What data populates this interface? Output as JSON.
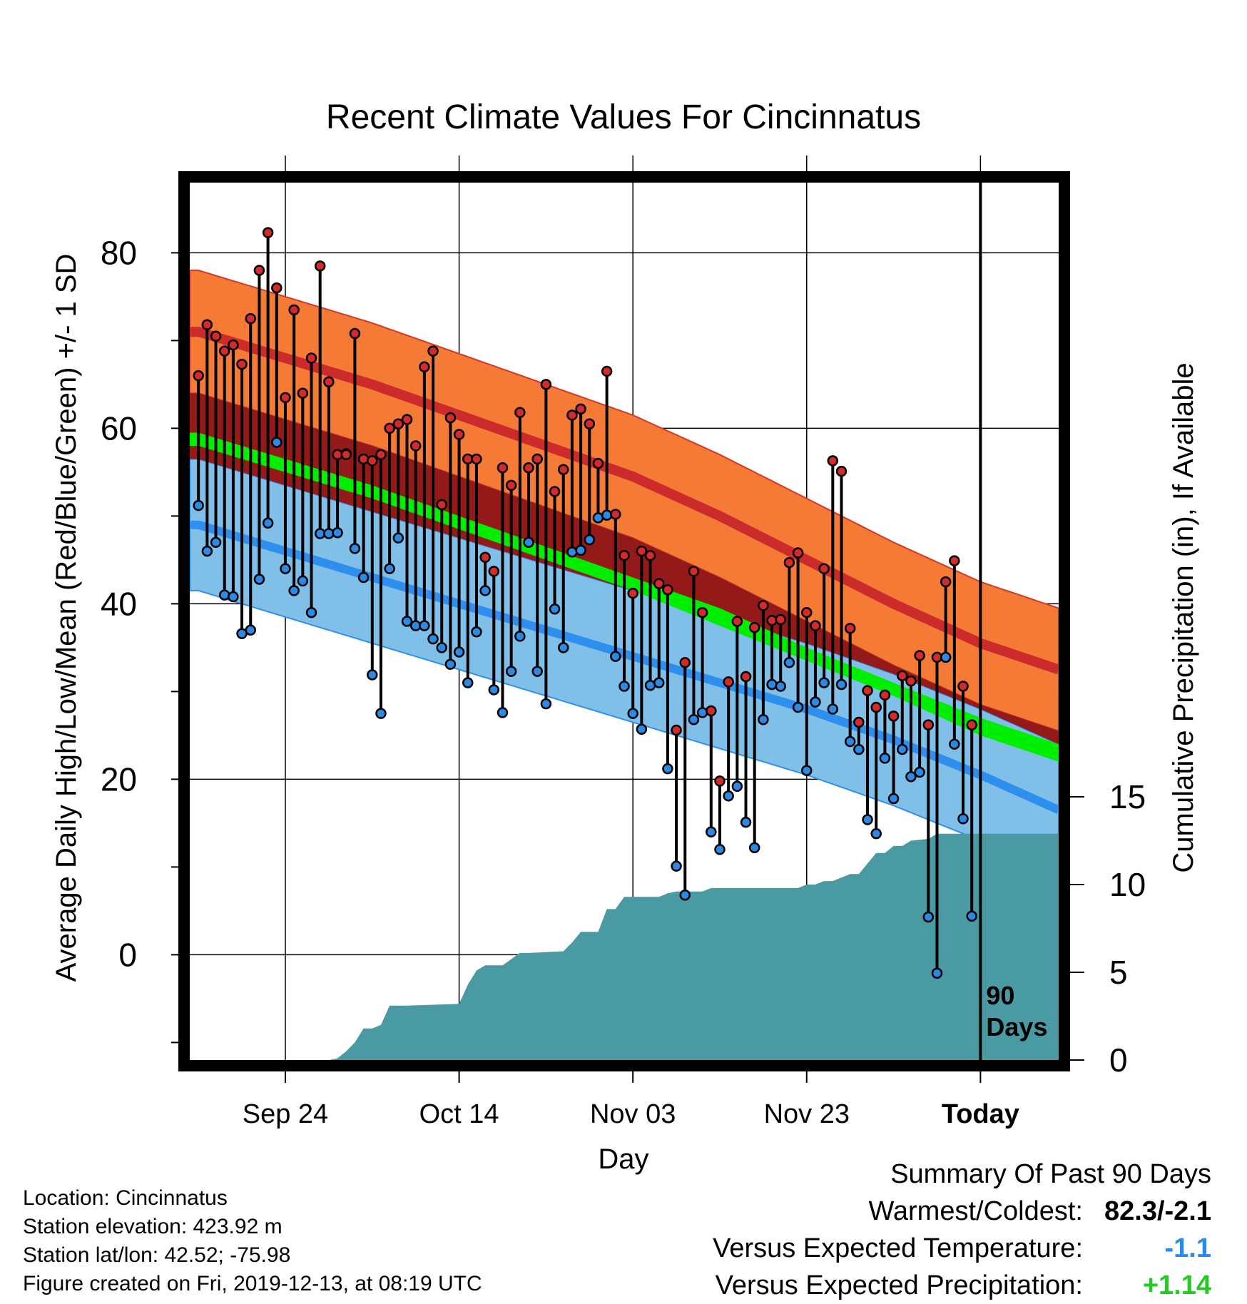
{
  "colors": {
    "record_high_band": "#f47a35",
    "normal_high_line": "#cc2b2b",
    "normal_low_band": "#80c0e8",
    "normal_low_line": "#2f8fef",
    "mean_band": "#00ee00",
    "precip_fill": "#4a9aa3",
    "frame": "#000000",
    "high_dot": "#d42a2a",
    "low_dot": "#2a8ae6",
    "warm_anomaly": "#941a1a"
  },
  "chart_data": {
    "type": "line",
    "title": "Recent Climate Values For Cincinnatus",
    "xlabel": "Day",
    "ylabel": "Average Daily High/Low/Mean (Red/Blue/Green) +/- 1 SD",
    "y2label": "Cumulative Precipitation (in), If Available",
    "x_tick_labels": [
      "Sep 24",
      "Oct 14",
      "Nov 03",
      "Nov 23",
      "Today"
    ],
    "x_tick_days": [
      10,
      30,
      50,
      70,
      90
    ],
    "xlim": [
      -1,
      99
    ],
    "ylim": [
      -12,
      88
    ],
    "y_ticks": [
      0,
      20,
      40,
      60,
      80
    ],
    "y2_ticks": [
      0,
      5,
      10,
      15
    ],
    "y2lim": [
      0,
      50
    ],
    "today_marker_label": [
      "90",
      "Days"
    ],
    "grid": true,
    "normal_high": {
      "x": [
        0,
        10,
        20,
        30,
        40,
        50,
        60,
        70,
        80,
        90,
        99
      ],
      "mean": [
        71,
        68,
        65,
        61.5,
        58,
        54.5,
        50,
        45,
        40,
        35.5,
        32.5
      ],
      "sd": 7
    },
    "normal_low": {
      "x": [
        0,
        10,
        20,
        30,
        40,
        50,
        60,
        70,
        80,
        90,
        99
      ],
      "mean": [
        49,
        46,
        43,
        40,
        37,
        34,
        31,
        28,
        24.5,
        20.5,
        16.5
      ],
      "sd": 7.5
    },
    "normal_mean": {
      "x": [
        0,
        10,
        20,
        30,
        40,
        50,
        60,
        70,
        80,
        90,
        99
      ],
      "upper": [
        59.5,
        56.5,
        53.5,
        50,
        46.5,
        43,
        39.5,
        35,
        31,
        27,
        24
      ],
      "lower": [
        58,
        55,
        52,
        48.5,
        45,
        41.5,
        37.5,
        33.5,
        29.5,
        25,
        22
      ]
    },
    "daily_highs": [
      66,
      71.8,
      70.5,
      68.8,
      69.5,
      67.3,
      72.5,
      78,
      82.3,
      76,
      63.5,
      73.5,
      64,
      68,
      78.5,
      65.3,
      57,
      57,
      70.8,
      56.5,
      56.3,
      57,
      60,
      60.5,
      61,
      58,
      67,
      68.8,
      51.3,
      61.2,
      59.3,
      56.5,
      56.5,
      45.3,
      43.7,
      55.5,
      53.5,
      61.8,
      55.5,
      56.5,
      65,
      52.8,
      55.3,
      61.5,
      62.2,
      60.5,
      56,
      66.5,
      50.2,
      45.5,
      41.2,
      46,
      45.5,
      42.3,
      41.6,
      25.6,
      33.3,
      43.7,
      39,
      27.8,
      19.8,
      31.1,
      38,
      31.7,
      37.3,
      39.8,
      38.1,
      38.2,
      44.7,
      45.8,
      39,
      37.5,
      44,
      56.3,
      55.1,
      37.2,
      26.5,
      30.1,
      28.2,
      29.6,
      27.2,
      31.8,
      31.2,
      34.1,
      26.2,
      33.9,
      42.5,
      44.9,
      30.6,
      26.2
    ],
    "daily_lows": [
      51.2,
      46,
      47,
      41,
      40.8,
      36.6,
      37,
      42.8,
      49.2,
      58.4,
      44,
      41.5,
      42.6,
      39,
      48,
      48,
      48.1,
      57.1,
      46.3,
      43,
      31.9,
      27.5,
      44,
      47.5,
      38,
      37.5,
      37.5,
      36,
      35,
      33.1,
      34.5,
      31,
      36.8,
      41.5,
      30.2,
      27.6,
      32.3,
      36.3,
      47,
      32.3,
      28.6,
      39.4,
      35,
      45.9,
      46.1,
      47.3,
      49.8,
      50.1,
      34,
      30.6,
      27.5,
      25.7,
      30.7,
      31,
      21.2,
      10.1,
      6.8,
      26.8,
      27.6,
      14,
      12,
      18.1,
      19.2,
      15.1,
      12.2,
      26.8,
      30.8,
      30.6,
      33.3,
      28.2,
      21,
      28.8,
      31,
      28,
      30.8,
      24.3,
      23.4,
      15.4,
      13.8,
      22.4,
      17.8,
      23.4,
      20.3,
      20.8,
      4.3,
      -2.1,
      33.9,
      24,
      15.5,
      4.4
    ],
    "cumulative_precip": {
      "x": [
        0,
        10,
        15,
        16,
        17,
        18,
        19,
        20,
        21,
        22,
        23,
        24,
        30,
        31,
        32,
        33,
        35,
        37,
        38,
        42,
        43,
        44,
        46,
        47,
        48,
        49,
        53,
        54,
        55,
        58,
        59,
        69,
        70,
        71,
        72,
        73,
        75,
        76,
        78,
        79,
        80,
        81,
        82,
        84,
        85,
        90,
        99
      ],
      "values": [
        0,
        0,
        0,
        0.1,
        0.5,
        1.0,
        1.8,
        1.8,
        2.0,
        3.1,
        3.1,
        3.1,
        3.2,
        4.3,
        5.1,
        5.4,
        5.4,
        6.1,
        6.1,
        6.2,
        6.7,
        7.3,
        7.3,
        8.6,
        8.6,
        9.3,
        9.3,
        9.5,
        9.6,
        9.6,
        9.8,
        9.8,
        10.0,
        10.0,
        10.2,
        10.2,
        10.6,
        10.6,
        11.8,
        11.8,
        12.2,
        12.2,
        12.5,
        12.6,
        12.9,
        12.9,
        12.9
      ]
    }
  },
  "info": {
    "location": "Location: Cincinnatus",
    "elevation": "Station elevation: 423.92 m",
    "latlon": "Station lat/lon: 42.52; -75.98",
    "created": "Figure created on Fri, 2019-12-13, at 08:19 UTC"
  },
  "summary": {
    "heading": "Summary Of Past 90 Days",
    "warmest_label": "Warmest/Coldest:",
    "warmest_value": "82.3/-2.1",
    "temp_label": "Versus Expected Temperature:",
    "temp_value": "-1.1",
    "temp_color": "#2a8ae6",
    "precip_label": "Versus Expected Precipitation:",
    "precip_value": "+1.14",
    "precip_color": "#22cc22"
  }
}
